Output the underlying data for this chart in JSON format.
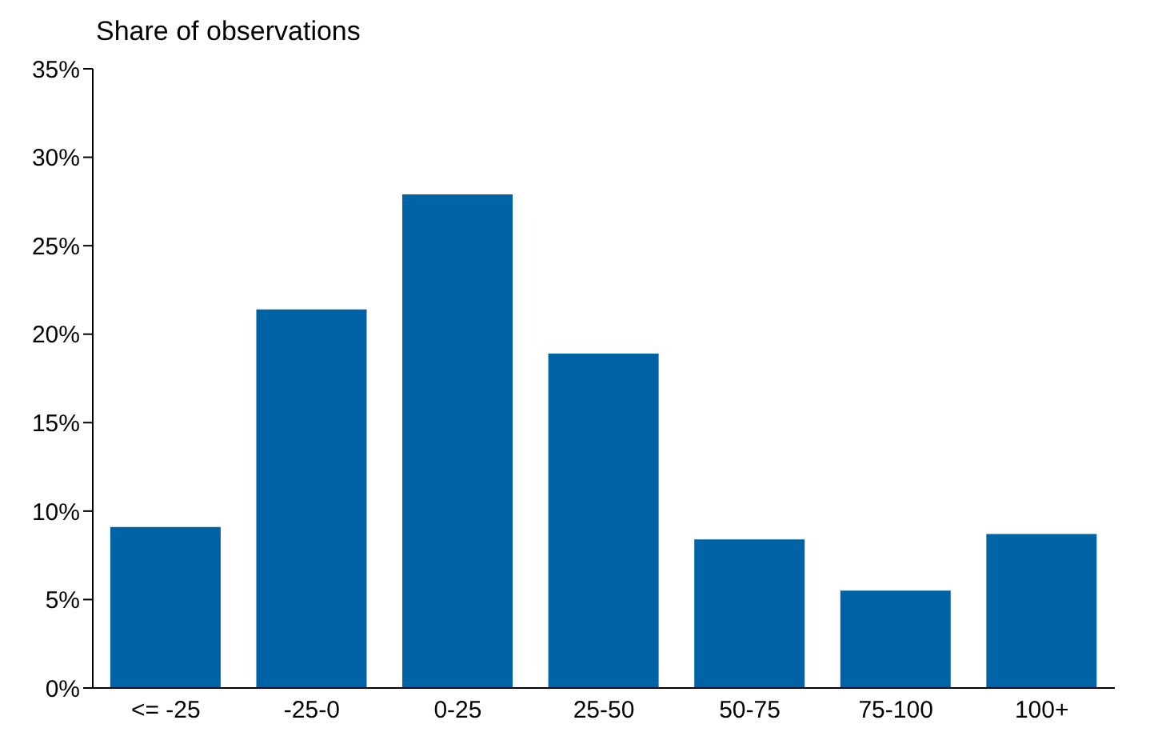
{
  "chart_data": {
    "type": "bar",
    "ylabel": "Share of observations",
    "categories": [
      "<= -25",
      "-25-0",
      "0-25",
      "25-50",
      "50-75",
      "75-100",
      "100+"
    ],
    "values": [
      9.1,
      21.4,
      27.9,
      18.9,
      8.4,
      5.5,
      8.7
    ],
    "color": "#0063a6",
    "ylim": [
      0,
      35
    ],
    "yticks": [
      {
        "value": 0,
        "label": "0%"
      },
      {
        "value": 5,
        "label": "5%"
      },
      {
        "value": 10,
        "label": "10%"
      },
      {
        "value": 15,
        "label": "15%"
      },
      {
        "value": 20,
        "label": "20%"
      },
      {
        "value": 25,
        "label": "25%"
      },
      {
        "value": 30,
        "label": "30%"
      },
      {
        "value": 35,
        "label": "35%"
      }
    ]
  }
}
